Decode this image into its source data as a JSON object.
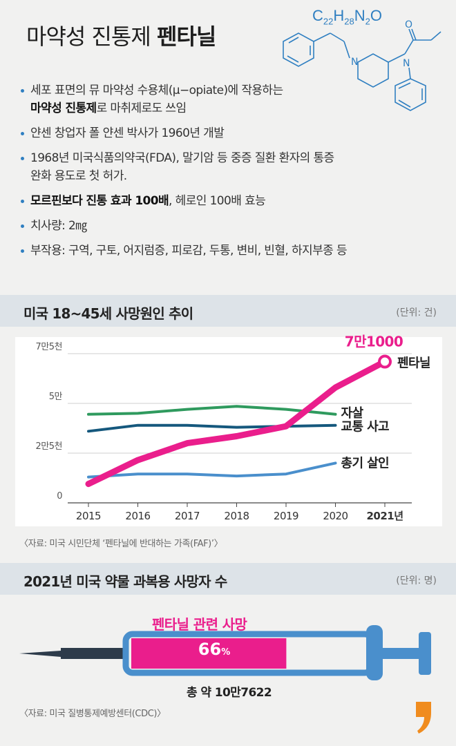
{
  "header": {
    "title_light": "마약성 진통제",
    "title_bold": "펜타닐",
    "formula": {
      "c": "C",
      "c_n": "22",
      "h": "H",
      "h_n": "28",
      "n": "N",
      "n_n": "2",
      "o": "O"
    },
    "molecule_atoms": {
      "n1": "N",
      "n2": "N",
      "o": "O"
    }
  },
  "bullets": [
    {
      "parts": [
        {
          "text": "세포 표면의 뮤 마약성 수용체(μ−opiate)에 작용하는",
          "bold": false
        }
      ],
      "line2": [
        {
          "text": "마약성 진통제",
          "bold": true
        },
        {
          "text": "로 마취제로도 쓰임",
          "bold": false
        }
      ]
    },
    {
      "parts": [
        {
          "text": "얀센 창업자 폴 얀센 박사가 1960년 개발",
          "bold": false
        }
      ]
    },
    {
      "parts": [
        {
          "text": "1968년 미국식품의약국(FDA), 말기암 등 중증 질환 환자의 통증",
          "bold": false
        }
      ],
      "line2": [
        {
          "text": "완화 용도로 첫 허가.",
          "bold": false
        }
      ]
    },
    {
      "parts": [
        {
          "text": "모르핀보다 진통 효과 100배",
          "bold": true
        },
        {
          "text": ", 헤로인 100배 효능",
          "bold": false
        }
      ]
    },
    {
      "parts": [
        {
          "text": "치사량: 2㎎",
          "bold": false
        }
      ]
    },
    {
      "parts": [
        {
          "text": "부작용: 구역, 구토, 어지럼증, 피로감, 두통, 변비, 빈혈, 하지부종 등",
          "bold": false
        }
      ]
    }
  ],
  "section1": {
    "title": "미국 18~45세 사망원인 추이",
    "unit": "(단위: 건)"
  },
  "section2": {
    "title": "2021년 미국 약물 과복용 사망자 수",
    "unit": "(단위: 명)"
  },
  "source1": "〈자료: 미국 시민단체 ‘펜타닐에 반대하는 가족(FAF)’〉",
  "source2": "〈자료: 미국 질병통제예방센터(CDC)〉",
  "chart_data": {
    "type": "line",
    "x": [
      "2015",
      "2016",
      "2017",
      "2018",
      "2019",
      "2020",
      "2021년"
    ],
    "y_ticks": [
      {
        "value": 0,
        "label": "0"
      },
      {
        "value": 25000,
        "label": "2만5천"
      },
      {
        "value": 50000,
        "label": "5만"
      },
      {
        "value": 75000,
        "label": "7만5천"
      }
    ],
    "ylim": [
      0,
      75000
    ],
    "series": [
      {
        "name": "펜타닐",
        "color": "#ea1e8c",
        "values": [
          9500,
          21500,
          30000,
          33500,
          38500,
          58000,
          71000
        ]
      },
      {
        "name": "자살",
        "color": "#2f9a5e",
        "values": [
          44500,
          45000,
          47000,
          48500,
          47000,
          44500,
          null
        ]
      },
      {
        "name": "교통 사고",
        "color": "#15587d",
        "values": [
          36000,
          39000,
          39000,
          38000,
          38500,
          39000,
          null
        ]
      },
      {
        "name": "총기 살인",
        "color": "#4a8fcc",
        "values": [
          13000,
          14500,
          14500,
          13500,
          14500,
          20000,
          null
        ]
      }
    ],
    "annotation": {
      "series": "펜타닐",
      "label": "7만1000"
    }
  },
  "syringe": {
    "label": "펜타닐 관련 사망",
    "percent_value": 66,
    "percent_num": "66",
    "percent_sign": "%",
    "total": "총 약 10만7622",
    "fill_color": "#ea1e8c"
  }
}
